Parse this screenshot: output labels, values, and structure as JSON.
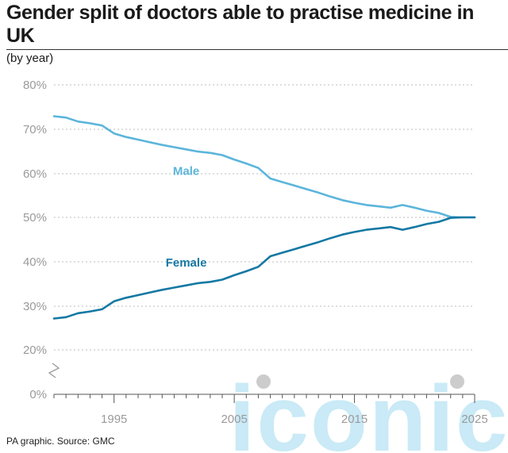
{
  "title": "Gender split of doctors able to practise medicine in UK",
  "subtitle": "(by year)",
  "source": "PA graphic. Source: GMC",
  "colors": {
    "male": "#5bb5db",
    "female": "#1478a3",
    "grid": "#bdbdbd",
    "axis": "#9a9a9a",
    "watermark": "#bfe6f5"
  },
  "watermark": {
    "text": "iconic"
  },
  "chart_data": {
    "type": "line",
    "title": "Gender split of doctors able to practise medicine in UK",
    "subtitle": "(by year)",
    "xlabel": "",
    "ylabel": "",
    "xlim": [
      1990,
      2025
    ],
    "ylim": [
      0,
      80
    ],
    "y_axis_break": [
      0,
      20
    ],
    "y_ticks": [
      0,
      20,
      30,
      40,
      50,
      60,
      70,
      80
    ],
    "y_tick_labels": [
      "0%",
      "20%",
      "30%",
      "40%",
      "50%",
      "60%",
      "70%",
      "80%"
    ],
    "x_ticks": [
      1995,
      2005,
      2015,
      2025
    ],
    "x_tick_labels": [
      "1995",
      "2005",
      "2015",
      "2025"
    ],
    "grid": true,
    "grid_style": "dotted horizontal",
    "x": [
      1990,
      1991,
      1992,
      1993,
      1994,
      1995,
      1996,
      1997,
      1998,
      1999,
      2000,
      2001,
      2002,
      2003,
      2004,
      2005,
      2006,
      2007,
      2008,
      2009,
      2010,
      2011,
      2012,
      2013,
      2014,
      2015,
      2016,
      2017,
      2018,
      2019,
      2020,
      2021,
      2022,
      2023,
      2024,
      2025
    ],
    "series": [
      {
        "name": "Male",
        "values": [
          72.9,
          72.6,
          71.7,
          71.3,
          70.8,
          69.0,
          68.2,
          67.6,
          67.0,
          66.4,
          65.9,
          65.4,
          64.9,
          64.6,
          64.1,
          63.1,
          62.2,
          61.2,
          58.8,
          58.0,
          57.2,
          56.4,
          55.6,
          54.7,
          53.9,
          53.3,
          52.8,
          52.5,
          52.2,
          52.8,
          52.2,
          51.5,
          51.0,
          50.1,
          50.0,
          50.0
        ]
      },
      {
        "name": "Female",
        "values": [
          27.1,
          27.4,
          28.3,
          28.7,
          29.2,
          31.0,
          31.8,
          32.4,
          33.0,
          33.6,
          34.1,
          34.6,
          35.1,
          35.4,
          35.9,
          36.9,
          37.8,
          38.8,
          41.2,
          42.0,
          42.8,
          43.6,
          44.4,
          45.3,
          46.1,
          46.7,
          47.2,
          47.5,
          47.8,
          47.2,
          47.8,
          48.5,
          49.0,
          49.9,
          50.0,
          50.0
        ]
      }
    ]
  }
}
